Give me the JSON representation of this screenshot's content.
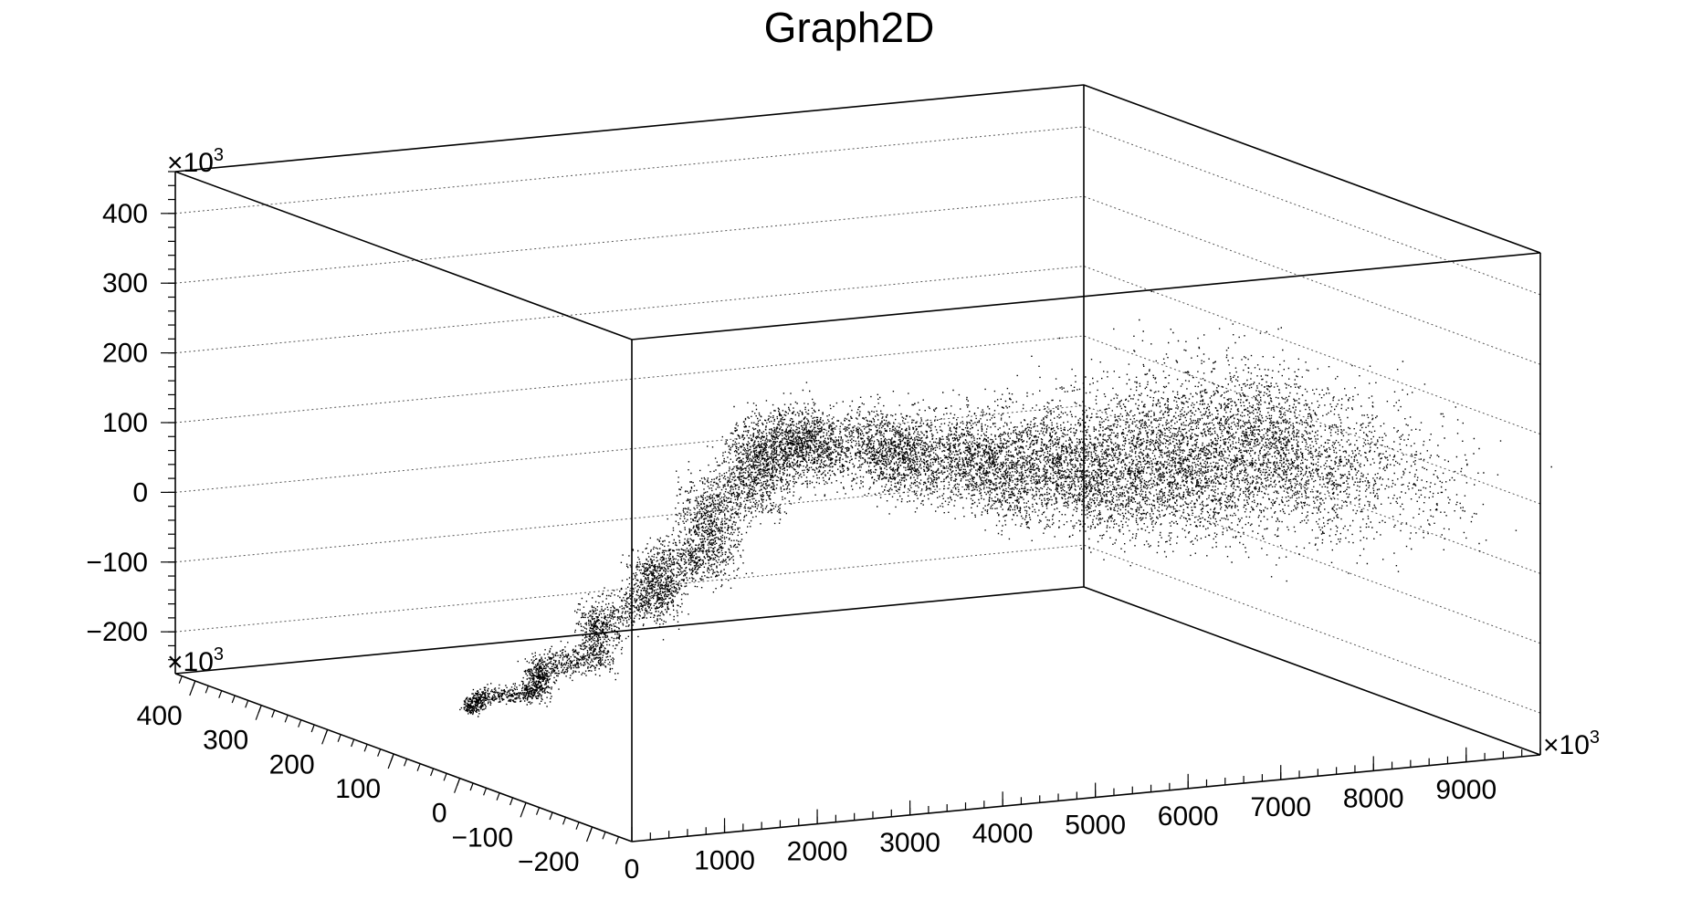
{
  "chart_data": {
    "type": "scatter",
    "title": "Graph2D",
    "xlabel": "",
    "ylabel": "",
    "zlabel": "",
    "x_exponent": "×10",
    "y_exponent": "×10",
    "z_exponent": "×10",
    "exponent_power": "3",
    "x_range": [
      0,
      9800
    ],
    "y_range": [
      -260,
      430
    ],
    "z_range": [
      -260,
      460
    ],
    "x_ticks": [
      "0",
      "1000",
      "2000",
      "3000",
      "4000",
      "5000",
      "6000",
      "7000",
      "8000",
      "9000"
    ],
    "x_tick_values": [
      0,
      1000,
      2000,
      3000,
      4000,
      5000,
      6000,
      7000,
      8000,
      9000
    ],
    "y_ticks": [
      "400",
      "300",
      "200",
      "100",
      "0",
      "−100",
      "−200"
    ],
    "y_tick_values": [
      400,
      300,
      200,
      100,
      0,
      -100,
      -200
    ],
    "z_ticks": [
      "400",
      "300",
      "200",
      "100",
      "0",
      "−100",
      "−200"
    ],
    "z_tick_values": [
      400,
      300,
      200,
      100,
      0,
      -100,
      -200
    ],
    "grid": true,
    "marker_color": "#000000",
    "series": [
      {
        "points_sampled": [
          [
            50,
            -5,
            -160
          ],
          [
            300,
            10,
            -150
          ],
          [
            700,
            -15,
            -140
          ],
          [
            1000,
            20,
            -120
          ],
          [
            1400,
            -10,
            -100
          ],
          [
            1700,
            30,
            -60
          ],
          [
            2000,
            -20,
            -20
          ],
          [
            2200,
            15,
            10
          ],
          [
            2500,
            -30,
            40
          ],
          [
            2800,
            20,
            90
          ],
          [
            3100,
            -15,
            130
          ],
          [
            3300,
            10,
            170
          ],
          [
            3500,
            -25,
            180
          ],
          [
            4000,
            30,
            170
          ],
          [
            4500,
            -40,
            150
          ],
          [
            5000,
            50,
            140
          ],
          [
            5500,
            -60,
            120
          ],
          [
            6000,
            70,
            110
          ],
          [
            6500,
            -80,
            100
          ],
          [
            7000,
            90,
            90
          ],
          [
            7500,
            -100,
            90
          ],
          [
            8000,
            110,
            100
          ],
          [
            8500,
            -120,
            110
          ],
          [
            9000,
            130,
            110
          ],
          [
            9500,
            -140,
            105
          ]
        ]
      }
    ]
  }
}
